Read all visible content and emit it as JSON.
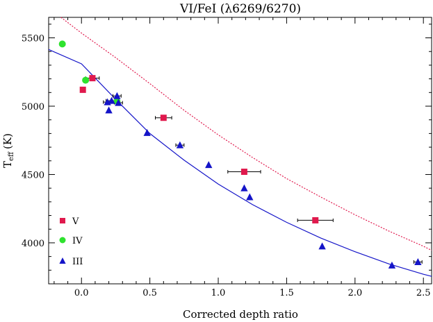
{
  "chart_data": {
    "type": "scatter",
    "title": "VI/FeI (λ6269/6270)",
    "xlabel": "Corrected depth ratio",
    "ylabel_main": "T",
    "ylabel_sub": "eff",
    "ylabel_unit": "(K)",
    "xlim": [
      -0.24,
      2.56
    ],
    "ylim": [
      3700,
      5650
    ],
    "xticks": [
      0.0,
      0.5,
      1.0,
      1.5,
      2.0,
      2.5
    ],
    "xtick_labels": [
      "0.0",
      "0.5",
      "1.0",
      "1.5",
      "2.0",
      "2.5"
    ],
    "yticks": [
      4000,
      4500,
      5000,
      5500
    ],
    "ytick_labels": [
      "4000",
      "4500",
      "5000",
      "5500"
    ],
    "grid": false,
    "legend_position": "bottom-left",
    "series": [
      {
        "name": "V",
        "marker": "square",
        "color": "#e0194d",
        "points": [
          {
            "x": 0.01,
            "y": 5120
          },
          {
            "x": 0.08,
            "y": 5205,
            "xerr": 0.05
          },
          {
            "x": 0.6,
            "y": 4915,
            "xerr": 0.06
          },
          {
            "x": 1.19,
            "y": 4520,
            "xerr": 0.12
          },
          {
            "x": 1.71,
            "y": 4165,
            "xerr": 0.13
          }
        ]
      },
      {
        "name": "IV",
        "marker": "circle",
        "color": "#2ee22e",
        "points": [
          {
            "x": -0.14,
            "y": 5455
          },
          {
            "x": 0.03,
            "y": 5190
          },
          {
            "x": 0.26,
            "y": 5035
          }
        ]
      },
      {
        "name": "III",
        "marker": "triangle",
        "color": "#1414c8",
        "points": [
          {
            "x": 0.19,
            "y": 5030,
            "xerr": 0.03
          },
          {
            "x": 0.22,
            "y": 5040,
            "xerr": 0.04
          },
          {
            "x": 0.26,
            "y": 5075,
            "xerr": 0.03
          },
          {
            "x": 0.27,
            "y": 5025,
            "xerr": 0.03
          },
          {
            "x": 0.2,
            "y": 4970
          },
          {
            "x": 0.48,
            "y": 4805
          },
          {
            "x": 0.72,
            "y": 4715,
            "xerr": 0.03
          },
          {
            "x": 0.93,
            "y": 4570
          },
          {
            "x": 1.19,
            "y": 4400
          },
          {
            "x": 1.23,
            "y": 4335
          },
          {
            "x": 1.76,
            "y": 3975
          },
          {
            "x": 2.27,
            "y": 3835
          },
          {
            "x": 2.46,
            "y": 3860,
            "xerr": 0.03
          }
        ]
      }
    ],
    "fit_curves": [
      {
        "style": "solid",
        "color": "#1414c8",
        "x": [
          -0.24,
          0.0,
          0.25,
          0.5,
          0.75,
          1.0,
          1.25,
          1.5,
          1.75,
          2.0,
          2.25,
          2.5,
          2.56
        ],
        "y": [
          5415,
          5310,
          5050,
          4800,
          4605,
          4430,
          4280,
          4150,
          4035,
          3935,
          3845,
          3770,
          3755
        ]
      },
      {
        "style": "dotted",
        "color": "#e0194d",
        "x": [
          -0.15,
          0.0,
          0.25,
          0.5,
          0.75,
          1.0,
          1.25,
          1.5,
          1.75,
          2.0,
          2.25,
          2.5,
          2.56
        ],
        "y": [
          5650,
          5535,
          5355,
          5165,
          4970,
          4790,
          4625,
          4470,
          4335,
          4205,
          4085,
          3975,
          3945
        ]
      }
    ]
  }
}
